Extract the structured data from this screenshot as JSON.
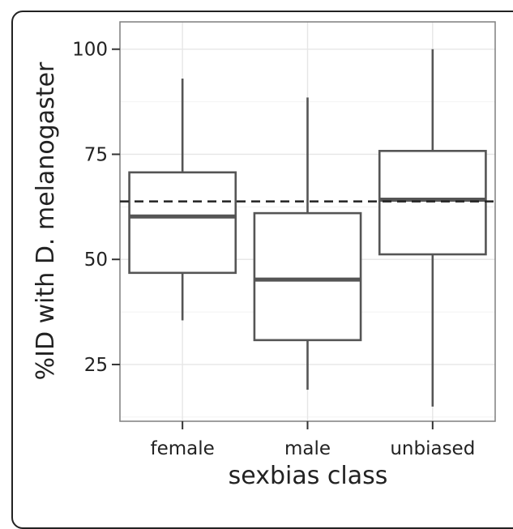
{
  "chart_data": {
    "type": "boxplot",
    "xlabel": "sexbias class",
    "ylabel": "%ID with D. melanogaster",
    "categories": [
      "female",
      "male",
      "unbiased"
    ],
    "boxes": [
      {
        "category": "female",
        "whisker_low": 35.5,
        "q1": 46.8,
        "median": 60.2,
        "q3": 70.7,
        "whisker_high": 93.0
      },
      {
        "category": "male",
        "whisker_low": 19.0,
        "q1": 30.8,
        "median": 45.2,
        "q3": 61.0,
        "whisker_high": 88.5
      },
      {
        "category": "unbiased",
        "whisker_low": 15.0,
        "q1": 51.2,
        "median": 64.2,
        "q3": 75.8,
        "whisker_high": 100.0
      }
    ],
    "reference_line": {
      "y": 63.8,
      "style": "dashed"
    },
    "yticks": [
      25,
      50,
      75,
      100
    ],
    "ylim": [
      11.5,
      106.5
    ],
    "grid": true
  }
}
